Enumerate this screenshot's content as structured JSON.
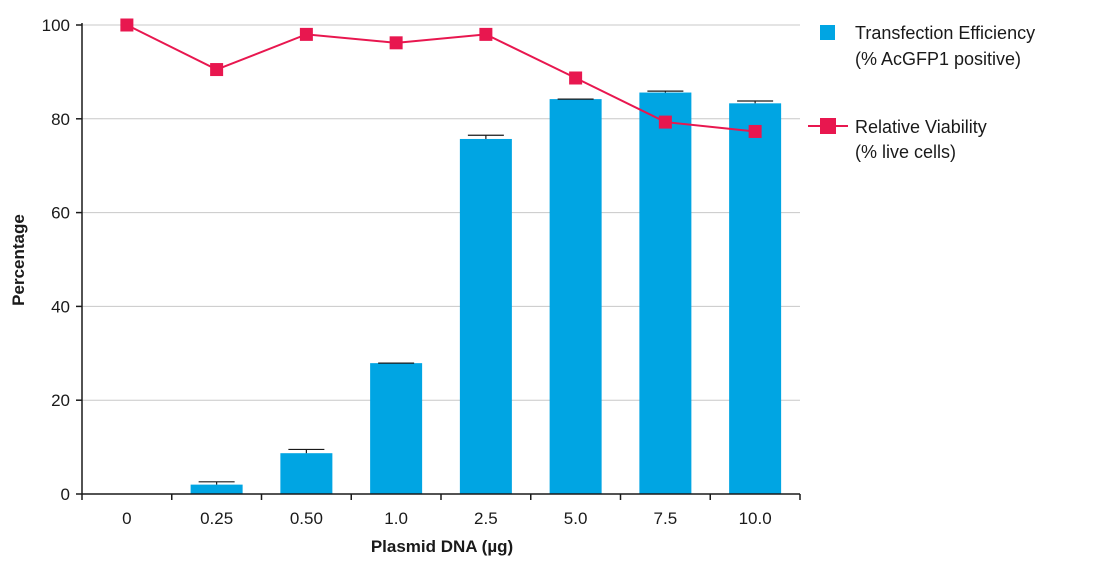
{
  "chart_data": {
    "type": "bar",
    "title": "",
    "xlabel": "Plasmid DNA (µg)",
    "ylabel": "Percentage",
    "categories": [
      "0",
      "0.25",
      "0.50",
      "1.0",
      "2.5",
      "5.0",
      "7.5",
      "10.0"
    ],
    "ylim": [
      0,
      100
    ],
    "yticks": [
      0,
      20,
      40,
      60,
      80,
      100
    ],
    "grid": true,
    "legend_position": "right",
    "series": [
      {
        "name_lines": [
          "Transfection Efficiency",
          "(% AcGFP1 positive)"
        ],
        "kind": "bar",
        "color": "#00a5e3",
        "values": [
          0,
          2,
          8.7,
          27.9,
          75.7,
          84.2,
          85.6,
          83.3
        ],
        "error": [
          0,
          0.6,
          0.8,
          0,
          0.8,
          0,
          0.3,
          0.5
        ]
      },
      {
        "name_lines": [
          "Relative Viability",
          "(% live cells)"
        ],
        "kind": "line",
        "color": "#e8174f",
        "values": [
          100,
          90.5,
          98,
          96.2,
          98,
          88.7,
          79.3,
          77.3
        ]
      }
    ]
  }
}
